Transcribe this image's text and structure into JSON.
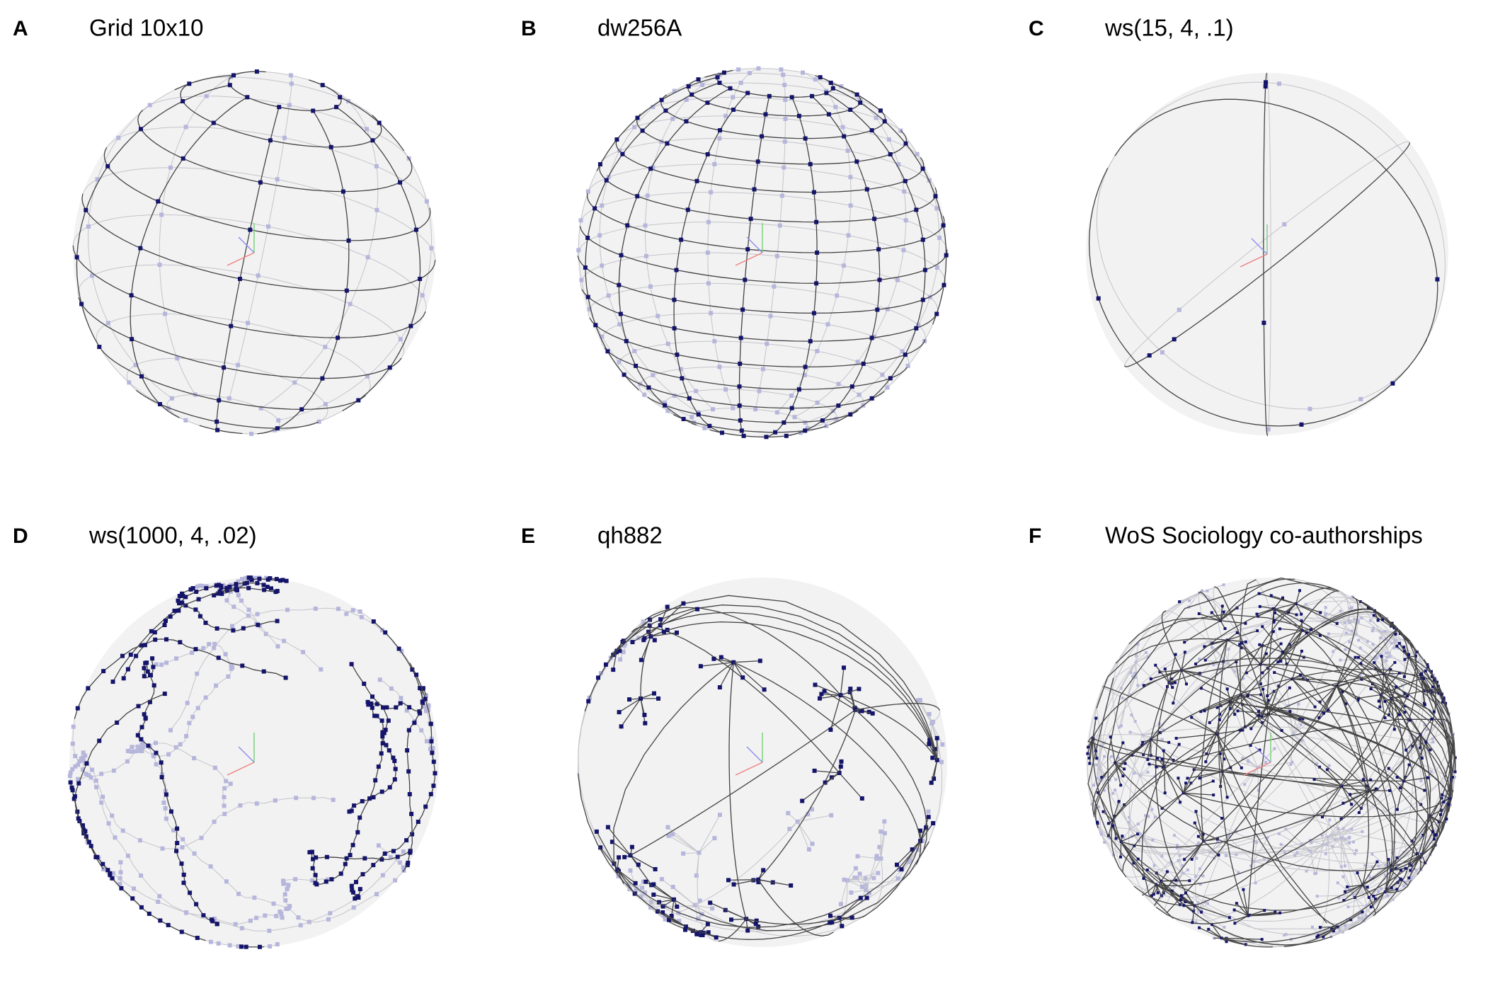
{
  "panels": [
    {
      "letter": "A",
      "title": "Grid 10x10"
    },
    {
      "letter": "B",
      "title": "dw256A"
    },
    {
      "letter": "C",
      "title": "ws(15, 4, .1)"
    },
    {
      "letter": "D",
      "title": "ws(1000, 4, .02)"
    },
    {
      "letter": "E",
      "title": "qh882"
    },
    {
      "letter": "F",
      "title": "WoS Sociology co-authorships"
    }
  ]
}
